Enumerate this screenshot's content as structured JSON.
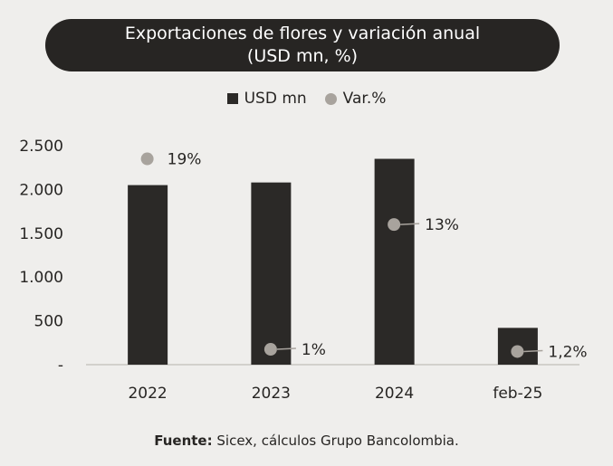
{
  "chart_data": {
    "type": "bar",
    "title_line1": "Exportaciones de flores y variación anual",
    "title_line2": "(USD mn, %)",
    "categories": [
      "2022",
      "2023",
      "2024",
      "feb-25"
    ],
    "series": [
      {
        "name": "USD mn",
        "type": "bar",
        "values": [
          2050,
          2080,
          2350,
          420
        ],
        "color": "#2b2927"
      },
      {
        "name": "Var.%",
        "type": "scatter",
        "values": [
          19,
          1,
          13,
          1.2
        ],
        "labels": [
          "19%",
          "1%",
          "13%",
          "1,2%"
        ],
        "color": "#a8a39d"
      }
    ],
    "yticks": [
      {
        "value": 2500,
        "label": "2.500"
      },
      {
        "value": 2000,
        "label": "2.000"
      },
      {
        "value": 1500,
        "label": "1.500"
      },
      {
        "value": 1000,
        "label": "1.000"
      },
      {
        "value": 500,
        "label": "500"
      },
      {
        "value": 0,
        "label": "-"
      }
    ],
    "ylim": [
      0,
      2500
    ],
    "grid": false,
    "legend_position": "top-center"
  },
  "source": {
    "label": "Fuente:",
    "text": " Sicex, cálculos Grupo Bancolombia."
  }
}
